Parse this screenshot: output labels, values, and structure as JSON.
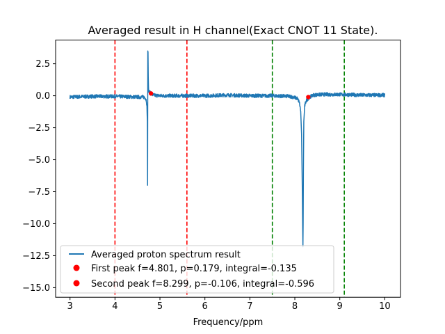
{
  "chart_data": {
    "type": "line",
    "title": "Averaged result in H channel(Exact CNOT 11 State).",
    "xlabel": "Frequency/ppm",
    "ylabel": "",
    "xlim": [
      2.68,
      10.35
    ],
    "ylim": [
      -15.75,
      4.35
    ],
    "x_ticks": [
      3,
      4,
      5,
      6,
      7,
      8,
      9,
      10
    ],
    "y_ticks": [
      2.5,
      0.0,
      -2.5,
      -5.0,
      -7.5,
      -10.0,
      -12.5,
      -15.0
    ],
    "x_tick_labels": [
      "3",
      "4",
      "5",
      "6",
      "7",
      "8",
      "9",
      "10"
    ],
    "y_tick_labels": [
      "2.5",
      "0.0",
      "−2.5",
      "−5.0",
      "−7.5",
      "−10.0",
      "−12.5",
      "−15.0"
    ],
    "grid": false,
    "legend_position": "lower-left",
    "series": [
      {
        "name": "Averaged proton spectrum result",
        "color": "#1f77b4",
        "x": [
          3.0,
          3.5,
          4.0,
          4.5,
          4.65,
          4.68,
          4.7,
          4.71,
          4.72,
          4.725,
          4.73,
          4.735,
          4.74,
          4.745,
          4.75,
          4.76,
          4.78,
          4.8,
          4.85,
          5.0,
          5.5,
          6.0,
          6.5,
          7.0,
          7.5,
          7.9,
          8.05,
          8.1,
          8.13,
          8.15,
          8.165,
          8.175,
          8.18,
          8.185,
          8.19,
          8.2,
          8.22,
          8.25,
          8.3,
          8.4,
          8.6,
          9.0,
          9.5,
          10.0
        ],
        "y": [
          -0.1,
          -0.05,
          -0.05,
          -0.1,
          -0.1,
          -0.2,
          -0.4,
          -0.8,
          -2.0,
          -7.0,
          3.5,
          3.4,
          1.5,
          0.6,
          0.4,
          0.3,
          0.25,
          0.15,
          0.05,
          0.0,
          0.0,
          0.0,
          0.05,
          0.0,
          0.0,
          -0.05,
          -0.2,
          -0.5,
          -1.2,
          -3.0,
          -7.0,
          -10.5,
          -11.8,
          -10.0,
          -6.0,
          -2.0,
          -0.8,
          -0.4,
          -0.2,
          0.05,
          0.1,
          0.1,
          0.05,
          0.05
        ]
      }
    ],
    "points": [
      {
        "name": "First peak f=4.801, p=0.179, integral=-0.135",
        "x": 4.801,
        "y": 0.179,
        "color": "#ff0000"
      },
      {
        "name": "Second peak f=8.299, p=-0.106, integral=-0.596",
        "x": 8.299,
        "y": -0.106,
        "color": "#ff0000"
      }
    ],
    "vlines": [
      {
        "x": 4.0,
        "color": "#ff0000",
        "style": "dashed"
      },
      {
        "x": 5.6,
        "color": "#ff0000",
        "style": "dashed"
      },
      {
        "x": 7.5,
        "color": "#008000",
        "style": "dashed"
      },
      {
        "x": 9.1,
        "color": "#008000",
        "style": "dashed"
      }
    ]
  }
}
